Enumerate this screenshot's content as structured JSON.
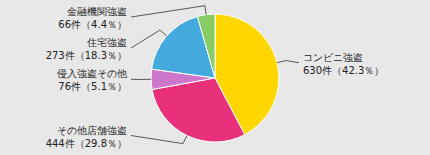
{
  "chart_data": {
    "type": "pie",
    "categories": [
      "コンビニ強盗",
      "その他店舗強盗",
      "侵入強盗その他",
      "住宅強盗",
      "金融機関強盗"
    ],
    "values": [
      630,
      444,
      76,
      273,
      66
    ],
    "value_labels": [
      "630件（42.3％）",
      "444件（29.8％）",
      "76件（5.1％）",
      "273件（18.3％）",
      "66件（4.4％）"
    ],
    "colors": [
      "#FFD700",
      "#E8317A",
      "#CC77CC",
      "#44AADD",
      "#88CC66"
    ]
  }
}
